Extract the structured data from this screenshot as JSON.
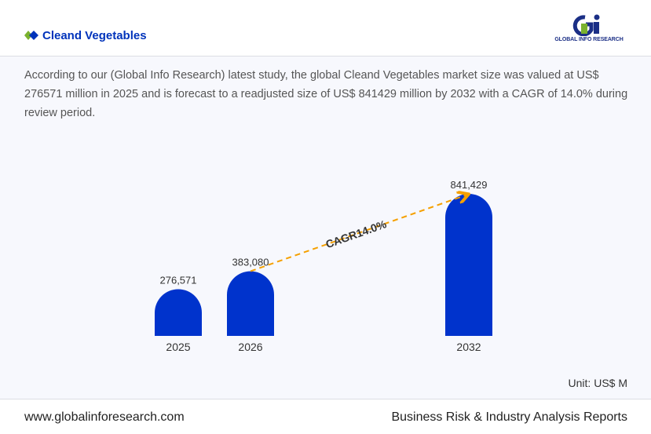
{
  "header": {
    "title": "Cleand Vegetables",
    "logo_text": "GLOBAL INFO RESEARCH"
  },
  "description": "According to our (Global Info Research) latest study, the global Cleand Vegetables market size was valued at US$ 276571 million in 2025 and is forecast to a readjusted size of US$ 841429 million by 2032 with a CAGR of 14.0% during review period.",
  "chart_data": {
    "type": "bar",
    "categories": [
      "2025",
      "2026",
      "2032"
    ],
    "values": [
      276571,
      383080,
      841429
    ],
    "data_labels": [
      "276,571",
      "383,080",
      "841,429"
    ],
    "annotation": "CAGR14.0%",
    "unit": "Unit: US$ M",
    "bar_color": "#0033cc",
    "arrow_color": "#f5a000",
    "ylim": [
      0,
      841429
    ]
  },
  "footer": {
    "website": "www.globalinforesearch.com",
    "tagline": "Business Risk & Industry Analysis Reports"
  }
}
